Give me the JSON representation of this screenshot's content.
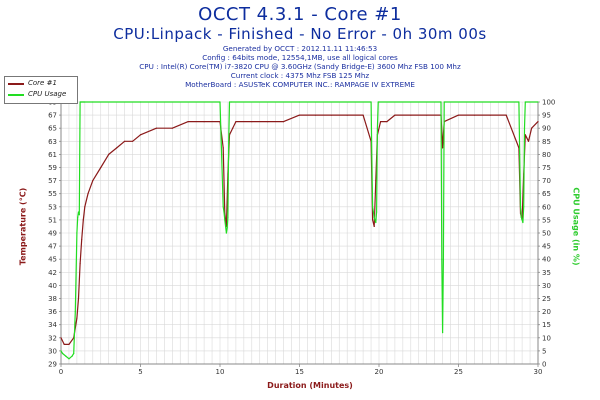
{
  "header": {
    "title": "OCCT 4.3.1 - Core #1",
    "subtitle": "CPU:Linpack - Finished - No Error - 0h 30m 00s",
    "info": [
      "Generated by OCCT : 2012.11.11 11:46:53",
      "Config : 64bits mode, 12554,1MB, use all logical cores",
      "CPU : Intel(R) Core(TM) i7-3820 CPU @ 3.60GHz (Sandy Bridge-E) 3600 Mhz FSB 100 Mhz",
      "Current clock : 4375 Mhz FSB 125 Mhz",
      "MotherBoard : ASUSTeK COMPUTER INC.: RAMPAGE IV EXTREME"
    ]
  },
  "colors": {
    "temperature": "#8b1a1a",
    "cpu_usage": "#22dd22",
    "grid": "#d9d9d9",
    "title": "#0d2d9e"
  },
  "chart_data": {
    "type": "line",
    "xlabel": "Duration (Minutes)",
    "ylabel_left": "Temperature (°C)",
    "ylabel_right": "CPU Usage (in %)",
    "xlim": [
      0,
      30
    ],
    "ylim_left": [
      29,
      69
    ],
    "ylim_right": [
      0,
      100
    ],
    "x_ticks": [
      0,
      5,
      10,
      15,
      20,
      25,
      30
    ],
    "y_left_ticks": [
      29,
      30,
      32,
      34,
      36,
      38,
      40,
      42,
      45,
      47,
      49,
      51,
      53,
      55,
      57,
      59,
      61,
      63,
      65,
      67,
      69
    ],
    "y_right_ticks": [
      0,
      5,
      10,
      15,
      20,
      25,
      30,
      35,
      40,
      45,
      50,
      55,
      60,
      65,
      70,
      75,
      80,
      85,
      90,
      95,
      100
    ],
    "grid": true,
    "legend_position": "top-left",
    "series": [
      {
        "name": "Core #1",
        "axis": "left",
        "x": [
          0,
          0.2,
          0.5,
          0.8,
          1.0,
          1.1,
          1.2,
          1.3,
          1.4,
          1.5,
          1.7,
          2.0,
          2.5,
          3.0,
          3.5,
          4.0,
          4.5,
          5.0,
          6.0,
          7.0,
          8.0,
          9.0,
          10.0,
          10.2,
          10.3,
          10.4,
          10.5,
          10.6,
          10.8,
          11.0,
          12.0,
          13.0,
          14.0,
          15.0,
          16.0,
          17.0,
          18.0,
          19.0,
          19.5,
          19.6,
          19.7,
          19.8,
          19.9,
          20.1,
          20.5,
          21.0,
          22.0,
          23.0,
          23.9,
          24.0,
          24.1,
          25.0,
          26.0,
          27.0,
          28.0,
          28.8,
          28.9,
          29.0,
          29.1,
          29.2,
          29.4,
          29.6,
          30.0
        ],
        "values": [
          32,
          31,
          31,
          32,
          35,
          38,
          44,
          48,
          51,
          53,
          55,
          57,
          59,
          61,
          62,
          63,
          63,
          64,
          65,
          65,
          66,
          66,
          66,
          62,
          52,
          50,
          58,
          64,
          65,
          66,
          66,
          66,
          66,
          67,
          67,
          67,
          67,
          67,
          63,
          51,
          50,
          57,
          64,
          66,
          66,
          67,
          67,
          67,
          67,
          62,
          66,
          67,
          67,
          67,
          67,
          62,
          52,
          51,
          58,
          64,
          63,
          65,
          66
        ]
      },
      {
        "name": "CPU Usage",
        "axis": "right",
        "x": [
          0,
          0.1,
          0.3,
          0.5,
          0.7,
          0.8,
          0.9,
          1.0,
          1.05,
          1.1,
          1.15,
          1.2,
          1.25,
          1.3,
          1.35,
          1.4,
          1.45,
          1.5,
          2.0,
          5.0,
          10.0,
          10.1,
          10.2,
          10.25,
          10.3,
          10.4,
          10.45,
          10.5,
          10.55,
          10.6,
          10.7,
          15.0,
          19.5,
          19.55,
          19.6,
          19.65,
          19.7,
          19.75,
          19.8,
          19.85,
          19.9,
          19.95,
          20.0,
          23.9,
          23.95,
          24.0,
          24.05,
          24.1,
          28.8,
          28.85,
          28.9,
          28.95,
          29.0,
          29.05,
          29.1,
          29.15,
          29.2,
          30.0
        ],
        "values": [
          5,
          4,
          3,
          2,
          3,
          4,
          20,
          50,
          56,
          58,
          57,
          100,
          100,
          100,
          100,
          100,
          100,
          100,
          100,
          100,
          100,
          80,
          60,
          58,
          55,
          50,
          52,
          56,
          85,
          100,
          100,
          100,
          100,
          80,
          60,
          58,
          56,
          55,
          54,
          58,
          90,
          100,
          100,
          100,
          40,
          12,
          40,
          100,
          100,
          80,
          60,
          56,
          55,
          54,
          60,
          90,
          100,
          100
        ]
      }
    ]
  },
  "legend": {
    "items": [
      "Core #1",
      "CPU Usage"
    ]
  }
}
